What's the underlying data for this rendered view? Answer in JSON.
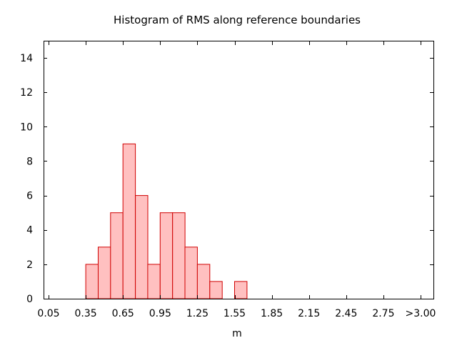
{
  "chart_data": {
    "type": "bar",
    "title": "Histogram of RMS along reference boundaries",
    "xlabel": "m",
    "ylabel": "",
    "x_tick_labels": [
      "0.05",
      "0.35",
      "0.65",
      "0.95",
      "1.25",
      "1.55",
      "1.85",
      "2.15",
      "2.45",
      "2.75",
      ">3.00"
    ],
    "y_tick_labels": [
      "0",
      "2",
      "4",
      "6",
      "8",
      "10",
      "12",
      "14"
    ],
    "xlim": [
      0.0,
      3.0
    ],
    "ylim": [
      0,
      15
    ],
    "bin_width": 0.1,
    "bins": [
      {
        "x": 0.35,
        "count": 2
      },
      {
        "x": 0.45,
        "count": 3
      },
      {
        "x": 0.55,
        "count": 5
      },
      {
        "x": 0.65,
        "count": 9
      },
      {
        "x": 0.75,
        "count": 6
      },
      {
        "x": 0.85,
        "count": 2
      },
      {
        "x": 0.95,
        "count": 5
      },
      {
        "x": 1.05,
        "count": 5
      },
      {
        "x": 1.15,
        "count": 3
      },
      {
        "x": 1.25,
        "count": 2
      },
      {
        "x": 1.35,
        "count": 1
      },
      {
        "x": 1.55,
        "count": 1
      }
    ],
    "bar_fill": "#ffc0c0",
    "bar_stroke": "#d00000",
    "grid": false,
    "legend": "none"
  }
}
